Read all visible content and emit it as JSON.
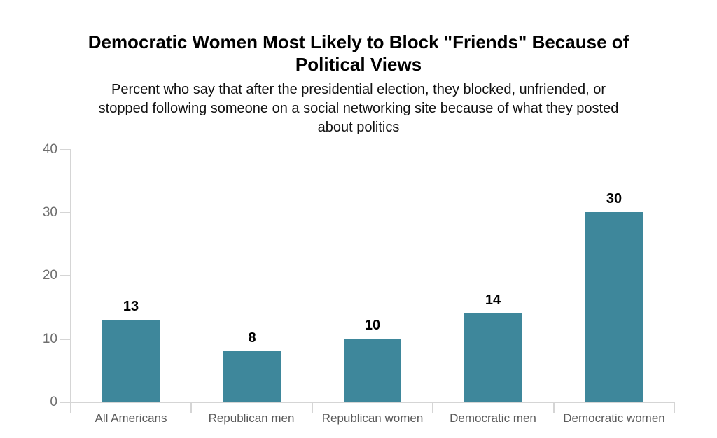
{
  "figure": {
    "title_lines": [
      "Democratic Women Most Likely to Block \"Friends\" Because of",
      "Political Views"
    ],
    "subtitle_lines": [
      "Percent who say that after the presidential election, they blocked, unfriended, or",
      "stopped following someone on a social networking site because of what they posted",
      "about politics"
    ]
  },
  "chart_data": {
    "type": "bar",
    "title": "Democratic Women Most Likely to Block \"Friends\" Because of Political Views",
    "subtitle": "Percent who say that after the presidential election, they blocked, unfriended, or stopped following someone on a social networking site because of what they posted about politics",
    "categories": [
      "All Americans",
      "Republican men",
      "Republican women",
      "Democratic men",
      "Democratic women"
    ],
    "values": [
      13,
      8,
      10,
      14,
      30
    ],
    "value_labels": [
      "13",
      "8",
      "10",
      "14",
      "30"
    ],
    "xlabel": "",
    "ylabel": "",
    "ylim": [
      0,
      40
    ],
    "yticks": [
      0,
      10,
      20,
      30,
      40
    ],
    "grid": false,
    "legend_position": "none",
    "bar_color": "#3e879b"
  },
  "style": {
    "background": "#ffffff",
    "axis_line_color": "#d5d5d5",
    "y_tick_label_color": "#6e6e6e",
    "category_label_color": "#5a5a5a",
    "value_label_color": "#000000",
    "title_color": "#000000",
    "subtitle_color": "#111111"
  }
}
